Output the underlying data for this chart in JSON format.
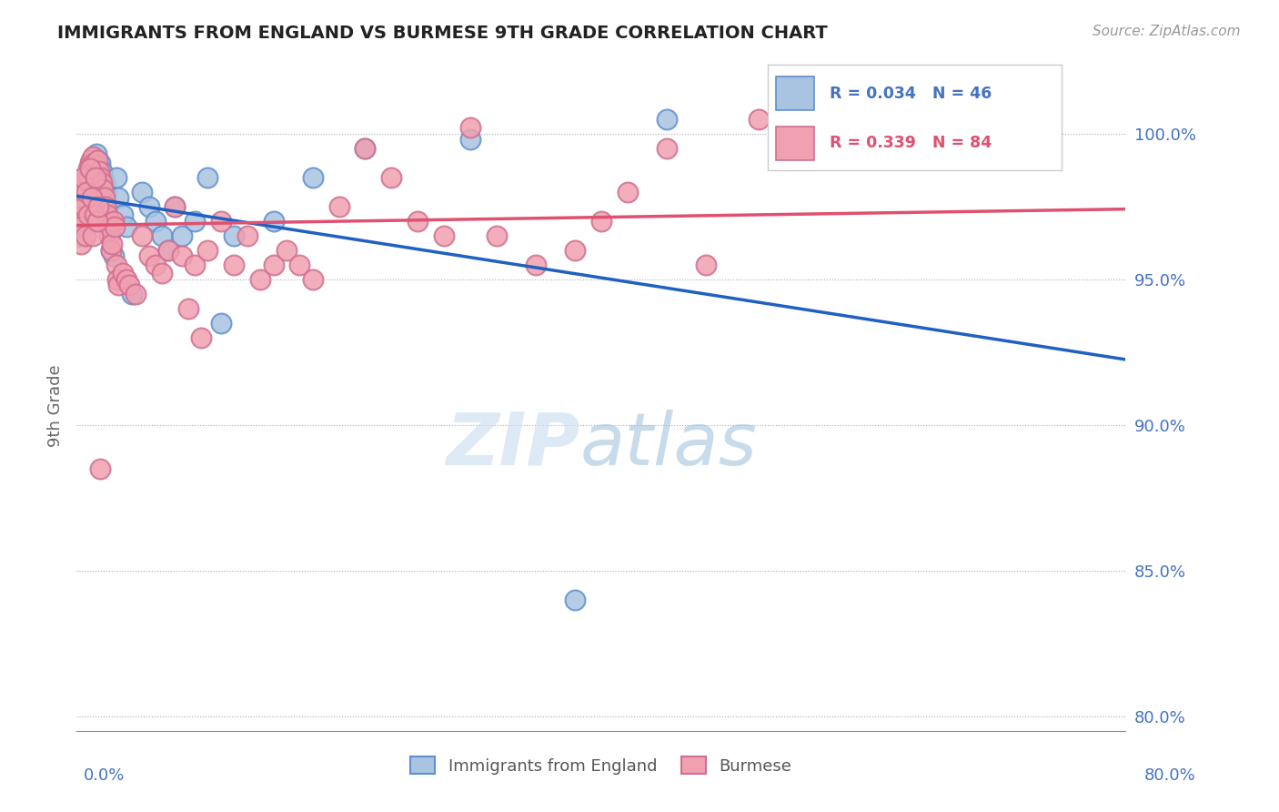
{
  "title": "IMMIGRANTS FROM ENGLAND VS BURMESE 9TH GRADE CORRELATION CHART",
  "source": "Source: ZipAtlas.com",
  "ylabel": "9th Grade",
  "xlim": [
    0.0,
    80.0
  ],
  "ylim": [
    79.5,
    101.8
  ],
  "yticks": [
    80.0,
    85.0,
    90.0,
    95.0,
    100.0
  ],
  "ytick_labels": [
    "80.0%",
    "85.0%",
    "90.0%",
    "95.0%",
    "100.0%"
  ],
  "legend_blue_label": "R = 0.034   N = 46",
  "legend_pink_label": "R = 0.339   N = 84",
  "legend_eng_label": "Immigrants from England",
  "legend_bur_label": "Burmese",
  "blue_color": "#a8c4e0",
  "pink_color": "#f0a0b0",
  "blue_edge_color": "#6090d0",
  "pink_edge_color": "#d07090",
  "blue_line_color": "#2060c0",
  "pink_line_color": "#e05070",
  "r_text_blue": "#4472c4",
  "r_text_pink": "#e05070",
  "axis_label_color": "#4472c4",
  "blue_x": [
    0.3,
    0.5,
    0.6,
    0.7,
    0.8,
    0.9,
    1.0,
    1.1,
    1.2,
    1.3,
    1.4,
    1.5,
    1.6,
    1.7,
    1.8,
    1.9,
    2.0,
    2.1,
    2.2,
    2.3,
    2.4,
    2.5,
    2.6,
    2.8,
    3.0,
    3.2,
    3.5,
    3.8,
    4.2,
    5.0,
    5.5,
    6.0,
    6.5,
    7.0,
    7.5,
    8.0,
    9.0,
    10.0,
    11.0,
    12.0,
    15.0,
    18.0,
    22.0,
    30.0,
    45.0,
    38.0
  ],
  "blue_y": [
    97.5,
    96.8,
    97.2,
    96.5,
    97.8,
    98.2,
    98.5,
    98.8,
    99.0,
    99.2,
    99.0,
    99.3,
    99.1,
    98.9,
    99.0,
    98.7,
    98.5,
    98.3,
    98.0,
    97.5,
    97.0,
    96.5,
    96.0,
    95.8,
    98.5,
    97.8,
    97.2,
    96.8,
    94.5,
    98.0,
    97.5,
    97.0,
    96.5,
    96.0,
    97.5,
    96.5,
    97.0,
    98.5,
    93.5,
    96.5,
    97.0,
    98.5,
    99.5,
    99.8,
    100.5,
    84.0
  ],
  "pink_x": [
    0.2,
    0.3,
    0.4,
    0.5,
    0.6,
    0.7,
    0.8,
    0.9,
    1.0,
    1.1,
    1.2,
    1.3,
    1.4,
    1.5,
    1.6,
    1.7,
    1.8,
    1.9,
    2.0,
    2.1,
    2.2,
    2.3,
    2.4,
    2.5,
    2.6,
    2.7,
    2.8,
    2.9,
    3.0,
    3.1,
    3.2,
    3.5,
    3.8,
    4.0,
    4.5,
    5.0,
    5.5,
    6.0,
    6.5,
    7.0,
    7.5,
    8.0,
    8.5,
    9.0,
    9.5,
    10.0,
    11.0,
    12.0,
    13.0,
    14.0,
    15.0,
    16.0,
    17.0,
    18.0,
    20.0,
    22.0,
    24.0,
    26.0,
    28.0,
    30.0,
    32.0,
    35.0,
    38.0,
    40.0,
    42.0,
    45.0,
    48.0,
    52.0,
    0.15,
    0.25,
    0.35,
    0.45,
    0.55,
    0.65,
    0.75,
    0.85,
    1.05,
    1.15,
    1.25,
    1.35,
    1.45,
    1.55,
    1.65,
    1.75
  ],
  "pink_y": [
    96.5,
    97.2,
    97.8,
    98.0,
    98.2,
    98.4,
    98.6,
    98.8,
    99.0,
    99.1,
    99.2,
    99.0,
    98.8,
    98.9,
    99.1,
    98.7,
    98.5,
    98.3,
    98.1,
    97.8,
    97.5,
    97.2,
    96.8,
    96.5,
    96.0,
    96.2,
    97.0,
    96.8,
    95.5,
    95.0,
    94.8,
    95.2,
    95.0,
    94.8,
    94.5,
    96.5,
    95.8,
    95.5,
    95.2,
    96.0,
    97.5,
    95.8,
    94.0,
    95.5,
    93.0,
    96.0,
    97.0,
    95.5,
    96.5,
    95.0,
    95.5,
    96.0,
    95.5,
    95.0,
    97.5,
    99.5,
    98.5,
    97.0,
    96.5,
    100.2,
    96.5,
    95.5,
    96.0,
    97.0,
    98.0,
    99.5,
    95.5,
    100.5,
    97.0,
    96.8,
    96.2,
    98.5,
    97.5,
    96.5,
    98.0,
    97.2,
    98.8,
    97.8,
    96.5,
    97.2,
    98.5,
    97.0,
    97.5,
    88.5
  ]
}
